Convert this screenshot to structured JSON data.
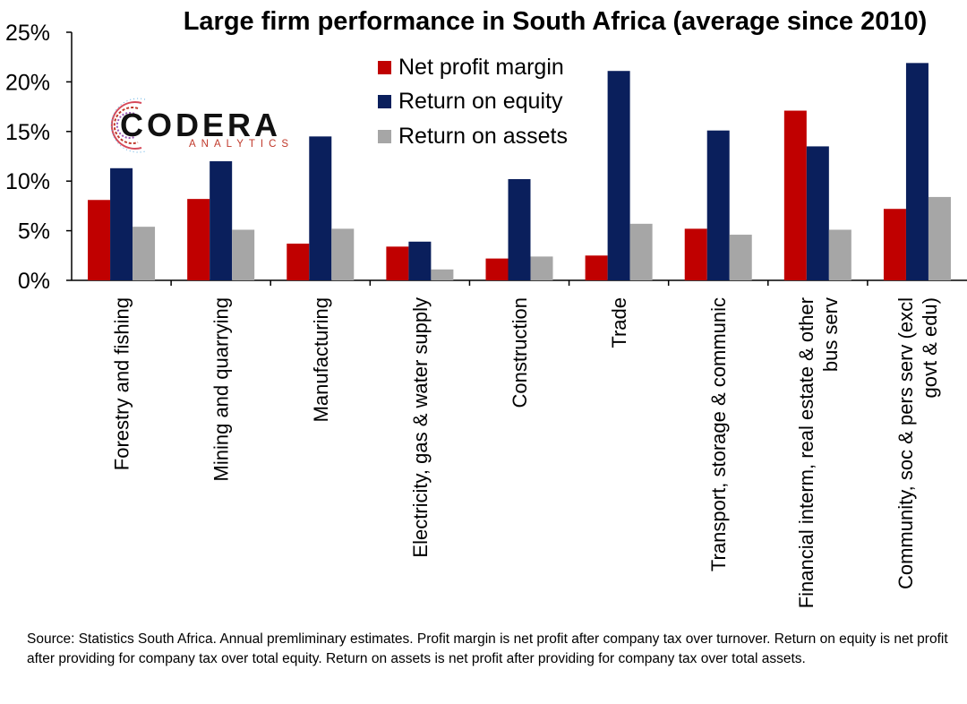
{
  "chart_data": {
    "type": "bar",
    "title": "Large firm performance in South Africa (average since 2010)",
    "categories": [
      [
        "Forestry and fishing"
      ],
      [
        "Mining and quarrying"
      ],
      [
        "Manufacturing"
      ],
      [
        "Electricity, gas & water supply"
      ],
      [
        "Construction"
      ],
      [
        "Trade"
      ],
      [
        "Transport, storage & communic"
      ],
      [
        "Financial interm, real estate & other",
        "bus serv"
      ],
      [
        "Community, soc & pers serv  (excl",
        "govt & edu)"
      ]
    ],
    "series": [
      {
        "name": "Net profit margin",
        "color": "#c00000",
        "values": [
          8.1,
          8.2,
          3.7,
          3.4,
          2.2,
          2.5,
          5.2,
          17.1,
          7.2
        ]
      },
      {
        "name": "Return on equity",
        "color": "#0a1f5c",
        "values": [
          11.3,
          12.0,
          14.5,
          3.9,
          10.2,
          21.1,
          15.1,
          13.5,
          21.9
        ]
      },
      {
        "name": "Return on assets",
        "color": "#a6a6a6",
        "values": [
          5.4,
          5.1,
          5.2,
          1.1,
          2.4,
          5.7,
          4.6,
          5.1,
          8.4
        ]
      }
    ],
    "yticks": [
      "0%",
      "5%",
      "10%",
      "15%",
      "20%",
      "25%"
    ],
    "ylim": [
      0,
      25
    ],
    "legend_position": "top-center",
    "grid": false
  },
  "logo": {
    "word": "CODERA",
    "sub": "ANALYTICS"
  },
  "source_note": "Source: Statistics South Africa. Annual premliminary estimates. Profit margin is net profit after company tax over turnover. Return on equity is net profit after providing for company tax over total equity. Return on assets is net profit after providing for company tax over total assets."
}
